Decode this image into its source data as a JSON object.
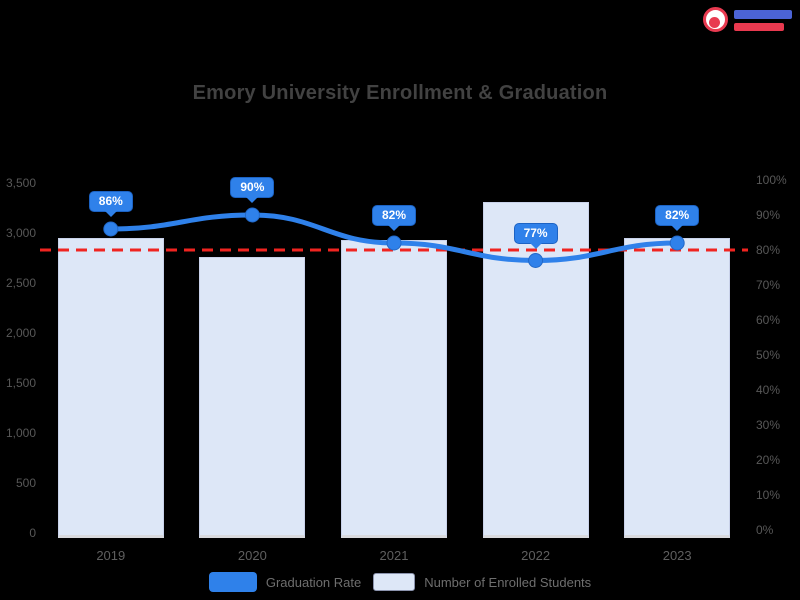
{
  "title": "Emory University Enrollment & Graduation",
  "brand": {
    "icon": "brand-circle-logo",
    "icon_color": "#e83a50",
    "text_color_1": "#4b63d6",
    "text_color_2": "#e8394f"
  },
  "chart_data": {
    "type": "combo",
    "categories": [
      "2019",
      "2020",
      "2021",
      "2022",
      "2023"
    ],
    "series": [
      {
        "name": "Graduation Rate",
        "type": "line",
        "axis": "right",
        "unit": "%",
        "values": [
          86,
          90,
          82,
          77,
          82
        ],
        "data_labels": [
          "86%",
          "90%",
          "82%",
          "77%",
          "82%"
        ],
        "color": "#2f81ea"
      },
      {
        "name": "Number of Enrolled Students",
        "type": "bar",
        "axis": "left",
        "values": [
          2950,
          2760,
          2930,
          3310,
          2950
        ],
        "color": "#dde7f7"
      }
    ],
    "left_axis": {
      "min": 0,
      "max": 3500,
      "ticks": [
        3500,
        3000,
        2500,
        2000,
        1500,
        1000,
        500,
        0
      ]
    },
    "right_axis": {
      "min": 0,
      "max": 100,
      "ticks": [
        "100%",
        "90%",
        "80%",
        "70%",
        "60%",
        "50%",
        "40%",
        "30%",
        "20%",
        "10%",
        "0%"
      ]
    },
    "target_line": {
      "axis": "right",
      "value": 80,
      "color": "#f02420",
      "style": "dashed"
    },
    "grid": "off",
    "legend_position": "bottom",
    "legend": [
      {
        "label": "Graduation Rate",
        "color": "#2f81ea"
      },
      {
        "label": "Number of Enrolled Students",
        "color": "#dde7f7"
      }
    ]
  }
}
